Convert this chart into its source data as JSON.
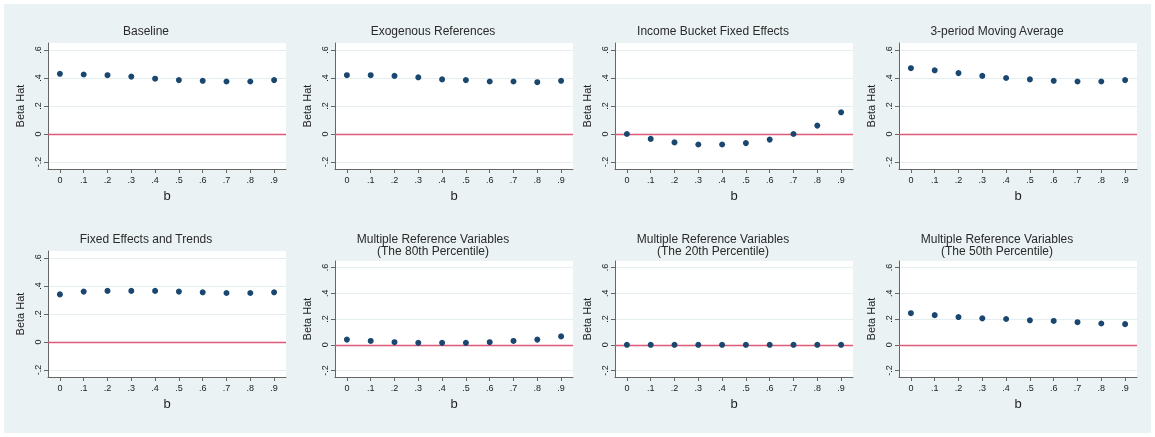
{
  "chart_data": [
    {
      "type": "scatter",
      "title": "Baseline",
      "xlabel": "b",
      "ylabel": "Beta Hat",
      "x": [
        0,
        0.1,
        0.2,
        0.3,
        0.4,
        0.5,
        0.6,
        0.7,
        0.8,
        0.9
      ],
      "values": [
        0.43,
        0.425,
        0.42,
        0.41,
        0.395,
        0.385,
        0.38,
        0.375,
        0.375,
        0.385
      ],
      "color": "#1a476f",
      "marker": "circle",
      "xlim": [
        -0.05,
        0.95
      ],
      "xticks": [
        {
          "value": 0,
          "label": "0"
        },
        {
          "value": 0.1,
          "label": ".1"
        },
        {
          "value": 0.2,
          "label": ".2"
        },
        {
          "value": 0.3,
          "label": ".3"
        },
        {
          "value": 0.4,
          "label": ".4"
        },
        {
          "value": 0.5,
          "label": ".5"
        },
        {
          "value": 0.6,
          "label": ".6"
        },
        {
          "value": 0.7,
          "label": ".7"
        },
        {
          "value": 0.8,
          "label": ".8"
        },
        {
          "value": 0.9,
          "label": ".9"
        }
      ],
      "ylim": [
        -0.25,
        0.65
      ],
      "yticks": [
        {
          "value": -0.2,
          "label": "-.2"
        },
        {
          "value": 0,
          "label": "0"
        },
        {
          "value": 0.2,
          "label": ".2"
        },
        {
          "value": 0.4,
          "label": ".4"
        },
        {
          "value": 0.6,
          "label": ".6"
        }
      ],
      "grid": "y",
      "ref_lines": [
        {
          "axis": "y",
          "value": 0,
          "color": "#dc5a78"
        }
      ]
    },
    {
      "type": "scatter",
      "title": "Exogenous References",
      "xlabel": "b",
      "ylabel": "Beta Hat",
      "x": [
        0,
        0.1,
        0.2,
        0.3,
        0.4,
        0.5,
        0.6,
        0.7,
        0.8,
        0.9
      ],
      "values": [
        0.42,
        0.42,
        0.415,
        0.405,
        0.39,
        0.385,
        0.375,
        0.375,
        0.37,
        0.38
      ],
      "color": "#1a476f",
      "marker": "circle",
      "xlim": [
        -0.05,
        0.95
      ],
      "xticks": [
        {
          "value": 0,
          "label": "0"
        },
        {
          "value": 0.1,
          "label": ".1"
        },
        {
          "value": 0.2,
          "label": ".2"
        },
        {
          "value": 0.3,
          "label": ".3"
        },
        {
          "value": 0.4,
          "label": ".4"
        },
        {
          "value": 0.5,
          "label": ".5"
        },
        {
          "value": 0.6,
          "label": ".6"
        },
        {
          "value": 0.7,
          "label": ".7"
        },
        {
          "value": 0.8,
          "label": ".8"
        },
        {
          "value": 0.9,
          "label": ".9"
        }
      ],
      "ylim": [
        -0.25,
        0.65
      ],
      "yticks": [
        {
          "value": -0.2,
          "label": "-.2"
        },
        {
          "value": 0,
          "label": "0"
        },
        {
          "value": 0.2,
          "label": ".2"
        },
        {
          "value": 0.4,
          "label": ".4"
        },
        {
          "value": 0.6,
          "label": ".6"
        }
      ],
      "grid": "y",
      "ref_lines": [
        {
          "axis": "y",
          "value": 0,
          "color": "#dc5a78"
        }
      ]
    },
    {
      "type": "scatter",
      "title": "Income Bucket Fixed Effects",
      "xlabel": "b",
      "ylabel": "Beta Hat",
      "x": [
        0,
        0.1,
        0.2,
        0.3,
        0.4,
        0.5,
        0.6,
        0.7,
        0.8,
        0.9
      ],
      "values": [
        0.0,
        -0.035,
        -0.06,
        -0.075,
        -0.075,
        -0.065,
        -0.04,
        0.0,
        0.06,
        0.155
      ],
      "color": "#1a476f",
      "marker": "circle",
      "xlim": [
        -0.05,
        0.95
      ],
      "xticks": [
        {
          "value": 0,
          "label": "0"
        },
        {
          "value": 0.1,
          "label": ".1"
        },
        {
          "value": 0.2,
          "label": ".2"
        },
        {
          "value": 0.3,
          "label": ".3"
        },
        {
          "value": 0.4,
          "label": ".4"
        },
        {
          "value": 0.5,
          "label": ".5"
        },
        {
          "value": 0.6,
          "label": ".6"
        },
        {
          "value": 0.7,
          "label": ".7"
        },
        {
          "value": 0.8,
          "label": ".8"
        },
        {
          "value": 0.9,
          "label": ".9"
        }
      ],
      "ylim": [
        -0.25,
        0.65
      ],
      "yticks": [
        {
          "value": -0.2,
          "label": "-.2"
        },
        {
          "value": 0,
          "label": "0"
        },
        {
          "value": 0.2,
          "label": ".2"
        },
        {
          "value": 0.4,
          "label": ".4"
        },
        {
          "value": 0.6,
          "label": ".6"
        }
      ],
      "grid": "y",
      "ref_lines": [
        {
          "axis": "y",
          "value": 0,
          "color": "#dc5a78"
        }
      ]
    },
    {
      "type": "scatter",
      "title": "3-period Moving Average",
      "xlabel": "b",
      "ylabel": "Beta Hat",
      "x": [
        0,
        0.1,
        0.2,
        0.3,
        0.4,
        0.5,
        0.6,
        0.7,
        0.8,
        0.9
      ],
      "values": [
        0.47,
        0.455,
        0.435,
        0.415,
        0.4,
        0.39,
        0.38,
        0.375,
        0.375,
        0.385
      ],
      "color": "#1a476f",
      "marker": "circle",
      "xlim": [
        -0.05,
        0.95
      ],
      "xticks": [
        {
          "value": 0,
          "label": "0"
        },
        {
          "value": 0.1,
          "label": ".1"
        },
        {
          "value": 0.2,
          "label": ".2"
        },
        {
          "value": 0.3,
          "label": ".3"
        },
        {
          "value": 0.4,
          "label": ".4"
        },
        {
          "value": 0.5,
          "label": ".5"
        },
        {
          "value": 0.6,
          "label": ".6"
        },
        {
          "value": 0.7,
          "label": ".7"
        },
        {
          "value": 0.8,
          "label": ".8"
        },
        {
          "value": 0.9,
          "label": ".9"
        }
      ],
      "ylim": [
        -0.25,
        0.65
      ],
      "yticks": [
        {
          "value": -0.2,
          "label": "-.2"
        },
        {
          "value": 0,
          "label": "0"
        },
        {
          "value": 0.2,
          "label": ".2"
        },
        {
          "value": 0.4,
          "label": ".4"
        },
        {
          "value": 0.6,
          "label": ".6"
        }
      ],
      "grid": "y",
      "ref_lines": [
        {
          "axis": "y",
          "value": 0,
          "color": "#dc5a78"
        }
      ]
    },
    {
      "type": "scatter",
      "title": "Fixed Effects and Trends",
      "xlabel": "b",
      "ylabel": "Beta Hat",
      "x": [
        0,
        0.1,
        0.2,
        0.3,
        0.4,
        0.5,
        0.6,
        0.7,
        0.8,
        0.9
      ],
      "values": [
        0.34,
        0.36,
        0.365,
        0.365,
        0.365,
        0.36,
        0.355,
        0.35,
        0.35,
        0.355
      ],
      "color": "#1a476f",
      "marker": "circle",
      "xlim": [
        -0.05,
        0.95
      ],
      "xticks": [
        {
          "value": 0,
          "label": "0"
        },
        {
          "value": 0.1,
          "label": ".1"
        },
        {
          "value": 0.2,
          "label": ".2"
        },
        {
          "value": 0.3,
          "label": ".3"
        },
        {
          "value": 0.4,
          "label": ".4"
        },
        {
          "value": 0.5,
          "label": ".5"
        },
        {
          "value": 0.6,
          "label": ".6"
        },
        {
          "value": 0.7,
          "label": ".7"
        },
        {
          "value": 0.8,
          "label": ".8"
        },
        {
          "value": 0.9,
          "label": ".9"
        }
      ],
      "ylim": [
        -0.25,
        0.65
      ],
      "yticks": [
        {
          "value": -0.2,
          "label": "-.2"
        },
        {
          "value": 0,
          "label": "0"
        },
        {
          "value": 0.2,
          "label": ".2"
        },
        {
          "value": 0.4,
          "label": ".4"
        },
        {
          "value": 0.6,
          "label": ".6"
        }
      ],
      "grid": "y",
      "ref_lines": [
        {
          "axis": "y",
          "value": 0,
          "color": "#dc5a78"
        }
      ]
    },
    {
      "type": "scatter",
      "title": "Multiple Reference Variables\n(The 80th Percentile)",
      "xlabel": "b",
      "ylabel": "Beta Hat",
      "x": [
        0,
        0.1,
        0.2,
        0.3,
        0.4,
        0.5,
        0.6,
        0.7,
        0.8,
        0.9
      ],
      "values": [
        0.04,
        0.03,
        0.02,
        0.015,
        0.015,
        0.015,
        0.02,
        0.03,
        0.04,
        0.065
      ],
      "color": "#1a476f",
      "marker": "circle",
      "xlim": [
        -0.05,
        0.95
      ],
      "xticks": [
        {
          "value": 0,
          "label": "0"
        },
        {
          "value": 0.1,
          "label": ".1"
        },
        {
          "value": 0.2,
          "label": ".2"
        },
        {
          "value": 0.3,
          "label": ".3"
        },
        {
          "value": 0.4,
          "label": ".4"
        },
        {
          "value": 0.5,
          "label": ".5"
        },
        {
          "value": 0.6,
          "label": ".6"
        },
        {
          "value": 0.7,
          "label": ".7"
        },
        {
          "value": 0.8,
          "label": ".8"
        },
        {
          "value": 0.9,
          "label": ".9"
        }
      ],
      "ylim": [
        -0.25,
        0.65
      ],
      "yticks": [
        {
          "value": -0.2,
          "label": "-.2"
        },
        {
          "value": 0,
          "label": "0"
        },
        {
          "value": 0.2,
          "label": ".2"
        },
        {
          "value": 0.4,
          "label": ".4"
        },
        {
          "value": 0.6,
          "label": ".6"
        }
      ],
      "grid": "y",
      "ref_lines": [
        {
          "axis": "y",
          "value": 0,
          "color": "#dc5a78"
        }
      ]
    },
    {
      "type": "scatter",
      "title": "Multiple Reference Variables\n(The 20th Percentile)",
      "xlabel": "b",
      "ylabel": "Beta Hat",
      "x": [
        0,
        0.1,
        0.2,
        0.3,
        0.4,
        0.5,
        0.6,
        0.7,
        0.8,
        0.9
      ],
      "values": [
        0,
        0,
        0,
        0,
        0,
        0,
        0,
        0,
        0,
        0
      ],
      "color": "#1a476f",
      "marker": "circle",
      "xlim": [
        -0.05,
        0.95
      ],
      "xticks": [
        {
          "value": 0,
          "label": "0"
        },
        {
          "value": 0.1,
          "label": ".1"
        },
        {
          "value": 0.2,
          "label": ".2"
        },
        {
          "value": 0.3,
          "label": ".3"
        },
        {
          "value": 0.4,
          "label": ".4"
        },
        {
          "value": 0.5,
          "label": ".5"
        },
        {
          "value": 0.6,
          "label": ".6"
        },
        {
          "value": 0.7,
          "label": ".7"
        },
        {
          "value": 0.8,
          "label": ".8"
        },
        {
          "value": 0.9,
          "label": ".9"
        }
      ],
      "ylim": [
        -0.25,
        0.65
      ],
      "yticks": [
        {
          "value": -0.2,
          "label": "-.2"
        },
        {
          "value": 0,
          "label": "0"
        },
        {
          "value": 0.2,
          "label": ".2"
        },
        {
          "value": 0.4,
          "label": ".4"
        },
        {
          "value": 0.6,
          "label": ".6"
        }
      ],
      "grid": "y",
      "ref_lines": [
        {
          "axis": "y",
          "value": 0,
          "color": "#dc5a78"
        }
      ]
    },
    {
      "type": "scatter",
      "title": "Multiple Reference Variables\n(The 50th Percentile)",
      "xlabel": "b",
      "ylabel": "Beta Hat",
      "x": [
        0,
        0.1,
        0.2,
        0.3,
        0.4,
        0.5,
        0.6,
        0.7,
        0.8,
        0.9
      ],
      "values": [
        0.245,
        0.23,
        0.215,
        0.205,
        0.2,
        0.19,
        0.185,
        0.175,
        0.165,
        0.16
      ],
      "color": "#1a476f",
      "marker": "circle",
      "xlim": [
        -0.05,
        0.95
      ],
      "xticks": [
        {
          "value": 0,
          "label": "0"
        },
        {
          "value": 0.1,
          "label": ".1"
        },
        {
          "value": 0.2,
          "label": ".2"
        },
        {
          "value": 0.3,
          "label": ".3"
        },
        {
          "value": 0.4,
          "label": ".4"
        },
        {
          "value": 0.5,
          "label": ".5"
        },
        {
          "value": 0.6,
          "label": ".6"
        },
        {
          "value": 0.7,
          "label": ".7"
        },
        {
          "value": 0.8,
          "label": ".8"
        },
        {
          "value": 0.9,
          "label": ".9"
        }
      ],
      "ylim": [
        -0.25,
        0.65
      ],
      "yticks": [
        {
          "value": -0.2,
          "label": "-.2"
        },
        {
          "value": 0,
          "label": "0"
        },
        {
          "value": 0.2,
          "label": ".2"
        },
        {
          "value": 0.4,
          "label": ".4"
        },
        {
          "value": 0.6,
          "label": ".6"
        }
      ],
      "grid": "y",
      "ref_lines": [
        {
          "axis": "y",
          "value": 0,
          "color": "#dc5a78"
        }
      ]
    }
  ]
}
